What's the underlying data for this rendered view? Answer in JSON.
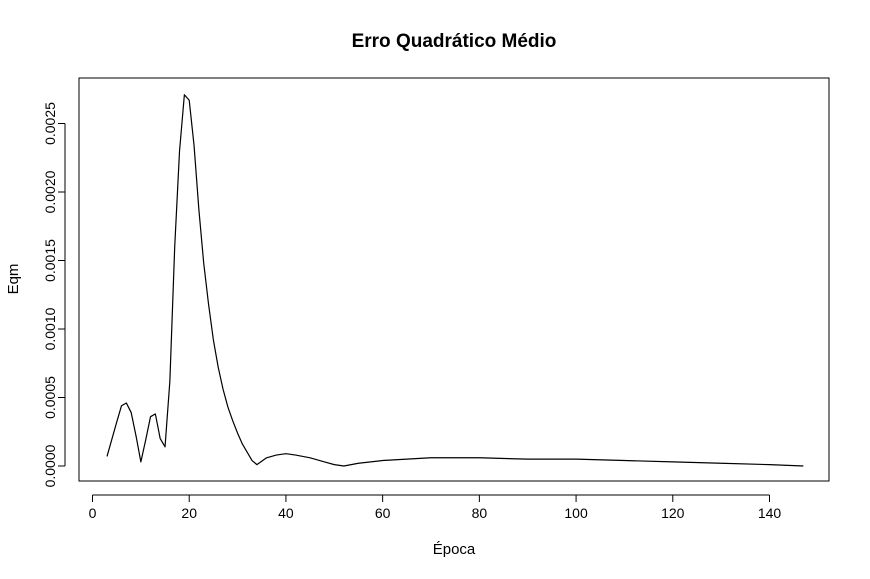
{
  "chart_data": {
    "type": "line",
    "title": "Erro Quadrático Médio",
    "xlabel": "Época",
    "ylabel": "Eqm",
    "xlim": [
      0,
      150
    ],
    "ylim": [
      -0.0001,
      0.0027
    ],
    "xticks": [
      0,
      20,
      40,
      60,
      80,
      100,
      120,
      140
    ],
    "xtick_labels": [
      "0",
      "20",
      "40",
      "60",
      "80",
      "100",
      "120",
      "140"
    ],
    "yticks": [
      0.0,
      0.0005,
      0.001,
      0.0015,
      0.002,
      0.0025
    ],
    "ytick_labels": [
      "0.0000",
      "0.0005",
      "0.0010",
      "0.0015",
      "0.0020",
      "0.0025"
    ],
    "grid": false,
    "series": [
      {
        "color": "#000000",
        "x": [
          3,
          5,
          6,
          7,
          8,
          9,
          10,
          11,
          12,
          13,
          14,
          15,
          16,
          17,
          18,
          19,
          20,
          21,
          22,
          23,
          24,
          25,
          26,
          27,
          28,
          29,
          30,
          31,
          32,
          33,
          34,
          36,
          38,
          40,
          42,
          45,
          48,
          50,
          52,
          55,
          60,
          65,
          70,
          76,
          80,
          90,
          100,
          110,
          120,
          130,
          140,
          147
        ],
        "y": [
          7e-05,
          0.00032,
          0.00044,
          0.00046,
          0.00039,
          0.00022,
          3e-05,
          0.00019,
          0.00036,
          0.00038,
          0.0002,
          0.00014,
          0.00062,
          0.0016,
          0.0023,
          0.00271,
          0.00267,
          0.00234,
          0.00187,
          0.00148,
          0.00118,
          0.00092,
          0.00072,
          0.00056,
          0.00043,
          0.00033,
          0.00024,
          0.00016,
          0.0001,
          4e-05,
          1e-05,
          6e-05,
          8e-05,
          9e-05,
          8e-05,
          6e-05,
          3e-05,
          1e-05,
          0.0,
          2e-05,
          4e-05,
          5e-05,
          6e-05,
          6e-05,
          6e-05,
          5e-05,
          5e-05,
          4e-05,
          3e-05,
          2e-05,
          1e-05,
          0.0
        ]
      }
    ]
  }
}
